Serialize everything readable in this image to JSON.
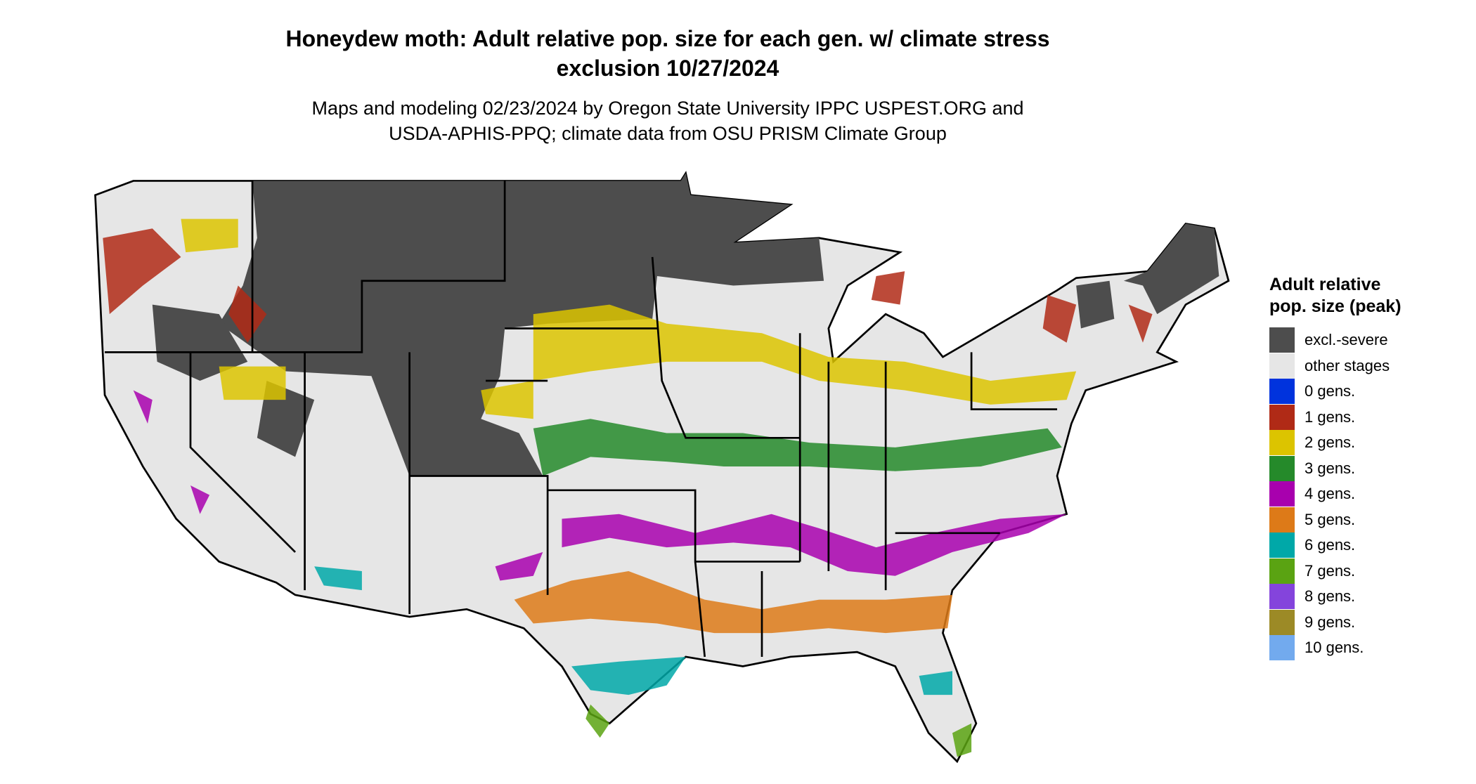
{
  "title": "Honeydew moth: Adult relative pop. size for each gen. w/ climate stress exclusion 10/27/2024",
  "subtitle": "Maps and modeling 02/23/2024 by Oregon State University IPPC USPEST.ORG and USDA-APHIS-PPQ; climate data from OSU PRISM Climate Group",
  "legend": {
    "title": "Adult relative pop. size (peak)",
    "items": [
      {
        "label": "excl.-severe",
        "color": "#4d4d4d"
      },
      {
        "label": "other stages",
        "color": "#e6e6e6"
      },
      {
        "label": "0 gens.",
        "color": "#0033dd"
      },
      {
        "label": "1 gens.",
        "color": "#b02a16"
      },
      {
        "label": "2 gens.",
        "color": "#dcc400"
      },
      {
        "label": "3 gens.",
        "color": "#258a2a"
      },
      {
        "label": "4 gens.",
        "color": "#a800ae"
      },
      {
        "label": "5 gens.",
        "color": "#dd7a18"
      },
      {
        "label": "6 gens.",
        "color": "#00a8a8"
      },
      {
        "label": "7 gens.",
        "color": "#5aa312"
      },
      {
        "label": "8 gens.",
        "color": "#8444dc"
      },
      {
        "label": "9 gens.",
        "color": "#9c8a26"
      },
      {
        "label": "10 gens.",
        "color": "#72aaee"
      }
    ]
  }
}
